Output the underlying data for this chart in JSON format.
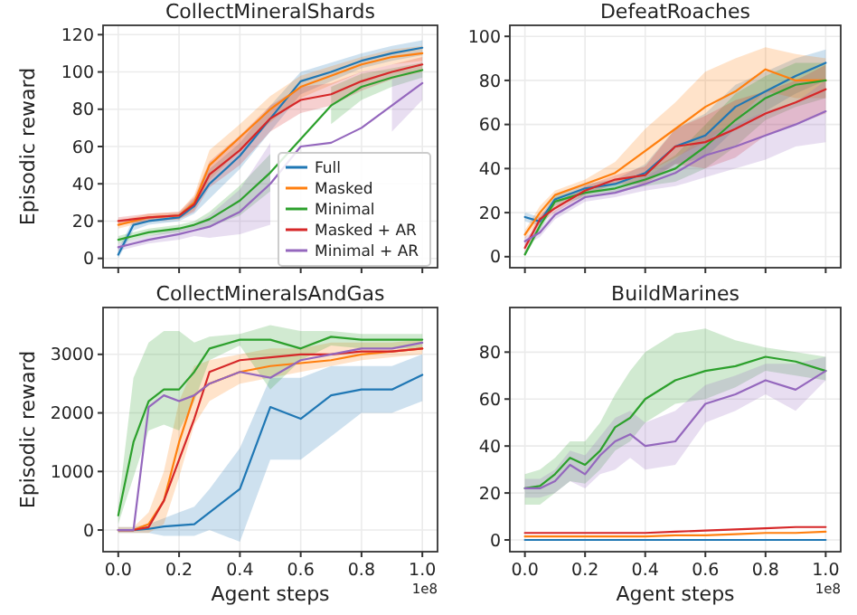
{
  "chart_data": [
    {
      "type": "line",
      "title": "CollectMineralShards",
      "ylabel": "Episodic reward",
      "xlim": [
        -0.05,
        1.05
      ],
      "ylim": [
        -5,
        125
      ],
      "yticks": [
        0,
        20,
        40,
        60,
        80,
        100,
        120
      ],
      "xticks": [
        0,
        0.2,
        0.4,
        0.6,
        0.8,
        1
      ],
      "tick_labels": "y",
      "grid": true,
      "legend": "bottom right",
      "x": [
        0,
        0.05,
        0.1,
        0.2,
        0.25,
        0.3,
        0.4,
        0.5,
        0.6,
        0.7,
        0.8,
        0.9,
        1.0
      ],
      "series": [
        {
          "name": "Full",
          "color": "#1f77b4",
          "values": [
            2,
            18,
            20,
            22,
            28,
            40,
            55,
            75,
            95,
            100,
            106,
            110,
            113
          ],
          "lower": [
            0,
            15,
            18,
            20,
            24,
            32,
            48,
            68,
            88,
            95,
            102,
            106,
            109
          ],
          "upper": [
            5,
            21,
            22,
            24,
            32,
            48,
            62,
            82,
            100,
            105,
            110,
            114,
            117
          ]
        },
        {
          "name": "Masked",
          "color": "#ff7f0e",
          "values": [
            18,
            20,
            22,
            23,
            30,
            50,
            65,
            80,
            92,
            98,
            104,
            108,
            110
          ],
          "lower": [
            16,
            18,
            20,
            21,
            26,
            42,
            58,
            73,
            86,
            93,
            100,
            104,
            106
          ],
          "upper": [
            20,
            22,
            24,
            25,
            34,
            58,
            72,
            87,
            98,
            103,
            108,
            112,
            114
          ]
        },
        {
          "name": "Minimal",
          "color": "#2ca02c",
          "values": [
            10,
            12,
            14,
            16,
            18,
            21,
            31,
            46,
            64,
            82,
            92,
            97,
            101
          ],
          "lower": [
            8,
            10,
            12,
            14,
            16,
            17,
            23,
            36,
            null,
            72,
            85,
            92,
            97
          ],
          "upper": [
            12,
            14,
            16,
            18,
            20,
            25,
            39,
            56,
            null,
            92,
            99,
            102,
            105
          ]
        },
        {
          "name": "Masked + AR",
          "color": "#d62728",
          "values": [
            20,
            21,
            22,
            23,
            29,
            45,
            58,
            75,
            85,
            88,
            95,
            100,
            104
          ],
          "lower": [
            18,
            19,
            20,
            21,
            25,
            38,
            50,
            68,
            78,
            82,
            90,
            96,
            100
          ],
          "upper": [
            22,
            23,
            24,
            25,
            33,
            52,
            66,
            82,
            92,
            94,
            100,
            104,
            108
          ]
        },
        {
          "name": "Minimal + AR",
          "color": "#9467bd",
          "values": [
            6,
            8,
            10,
            13,
            15,
            17,
            25,
            40,
            60,
            62,
            70,
            82,
            94
          ],
          "lower": [
            4,
            6,
            8,
            10,
            12,
            11,
            13,
            18,
            null,
            null,
            null,
            68,
            85
          ],
          "upper": [
            8,
            10,
            12,
            16,
            18,
            23,
            37,
            62,
            null,
            null,
            null,
            96,
            100
          ]
        }
      ]
    },
    {
      "type": "line",
      "title": "DefeatRoaches",
      "xlim": [
        -0.05,
        1.05
      ],
      "ylim": [
        -5,
        105
      ],
      "yticks": [
        0,
        20,
        40,
        60,
        80,
        100
      ],
      "xticks": [
        0,
        0.2,
        0.4,
        0.6,
        0.8,
        1
      ],
      "tick_labels": "y",
      "grid": true,
      "x": [
        0,
        0.05,
        0.1,
        0.2,
        0.3,
        0.4,
        0.5,
        0.6,
        0.7,
        0.8,
        0.9,
        1.0
      ],
      "series": [
        {
          "color": "#1f77b4",
          "values": [
            18,
            16,
            26,
            31,
            33,
            38,
            50,
            55,
            68,
            75,
            82,
            88
          ],
          "lower": [
            16,
            14,
            24,
            29,
            31,
            34,
            42,
            45,
            58,
            66,
            74,
            80
          ],
          "upper": [
            20,
            18,
            28,
            33,
            35,
            42,
            58,
            65,
            78,
            84,
            90,
            94
          ]
        },
        {
          "color": "#ff7f0e",
          "values": [
            10,
            20,
            28,
            33,
            38,
            48,
            58,
            68,
            75,
            85,
            80,
            80
          ],
          "lower": [
            8,
            17,
            26,
            31,
            33,
            38,
            45,
            52,
            62,
            75,
            72,
            72
          ],
          "upper": [
            12,
            23,
            30,
            35,
            43,
            58,
            70,
            84,
            90,
            95,
            92,
            90
          ]
        },
        {
          "color": "#2ca02c",
          "values": [
            1,
            14,
            25,
            29,
            31,
            35,
            40,
            50,
            62,
            72,
            78,
            80
          ],
          "lower": [
            0,
            12,
            23,
            27,
            29,
            32,
            34,
            40,
            50,
            62,
            68,
            72
          ],
          "upper": [
            2,
            16,
            27,
            31,
            33,
            38,
            46,
            60,
            74,
            82,
            88,
            88
          ]
        },
        {
          "color": "#d62728",
          "values": [
            4,
            17,
            22,
            30,
            35,
            37,
            50,
            52,
            58,
            65,
            70,
            76
          ],
          "lower": [
            2,
            15,
            20,
            28,
            33,
            33,
            42,
            40,
            45,
            55,
            60,
            65
          ],
          "upper": [
            6,
            19,
            24,
            32,
            37,
            41,
            58,
            64,
            71,
            75,
            80,
            87
          ]
        },
        {
          "color": "#9467bd",
          "values": [
            7,
            11,
            19,
            27,
            29,
            33,
            38,
            46,
            50,
            55,
            60,
            66
          ],
          "lower": [
            5,
            9,
            17,
            25,
            27,
            30,
            32,
            36,
            40,
            44,
            50,
            52
          ],
          "upper": [
            9,
            13,
            21,
            29,
            31,
            36,
            44,
            56,
            60,
            66,
            70,
            80
          ]
        }
      ]
    },
    {
      "type": "line",
      "title": "CollectMineralsAndGas",
      "xlabel": "Agent steps",
      "ylabel": "Episodic reward",
      "annotations": [
        "1e8"
      ],
      "xlim": [
        -0.05,
        1.05
      ],
      "ylim": [
        -370,
        3800
      ],
      "yticks": [
        0,
        1000,
        2000,
        3000
      ],
      "xticks": [
        {
          "value": 0,
          "label": "0.0"
        },
        {
          "value": 0.2,
          "label": "0.2"
        },
        {
          "value": 0.4,
          "label": "0.4"
        },
        {
          "value": 0.6,
          "label": "0.6"
        },
        {
          "value": 0.8,
          "label": "0.8"
        },
        {
          "value": 1,
          "label": "1.0"
        }
      ],
      "grid": true,
      "x": [
        0,
        0.05,
        0.1,
        0.15,
        0.2,
        0.25,
        0.3,
        0.4,
        0.5,
        0.6,
        0.7,
        0.8,
        0.9,
        1.0
      ],
      "series": [
        {
          "color": "#1f77b4",
          "values": [
            0,
            0,
            20,
            60,
            80,
            100,
            300,
            700,
            2100,
            1900,
            2300,
            2400,
            2400,
            2650
          ],
          "lower": [
            -50,
            -50,
            -50,
            -100,
            -100,
            -100,
            0,
            -200,
            1200,
            1200,
            1600,
            2000,
            2000,
            2200
          ],
          "upper": [
            50,
            50,
            100,
            200,
            300,
            400,
            700,
            1400,
            2600,
            2600,
            2800,
            2800,
            2800,
            3000
          ]
        },
        {
          "color": "#ff7f0e",
          "values": [
            0,
            0,
            100,
            500,
            1500,
            2300,
            2500,
            2700,
            2800,
            2850,
            2900,
            3000,
            3050,
            3100
          ],
          "lower": [
            -50,
            -50,
            -50,
            100,
            900,
            1800,
            2200,
            2500,
            2600,
            2700,
            2800,
            2900,
            2950,
            3000
          ],
          "upper": [
            50,
            50,
            300,
            1000,
            2200,
            2800,
            2900,
            3000,
            3100,
            3100,
            3200,
            3200,
            3200,
            3250
          ]
        },
        {
          "color": "#2ca02c",
          "values": [
            250,
            1500,
            2200,
            2400,
            2400,
            2700,
            3100,
            3250,
            3250,
            3100,
            3300,
            3250,
            3250,
            3250
          ],
          "lower": [
            100,
            900,
            1700,
            1800,
            1700,
            2200,
            2900,
            3150,
            2400,
            2900,
            3150,
            3100,
            3100,
            3100
          ],
          "upper": [
            400,
            2600,
            3200,
            3400,
            3400,
            3200,
            3300,
            3350,
            3500,
            3400,
            3400,
            3350,
            3350,
            3350
          ]
        },
        {
          "color": "#d62728",
          "values": [
            0,
            0,
            50,
            500,
            1200,
            1900,
            2700,
            2900,
            2950,
            3000,
            3000,
            3050,
            3050,
            3100
          ]
        },
        {
          "color": "#9467bd",
          "values": [
            0,
            0,
            2100,
            2300,
            2200,
            2300,
            2500,
            2700,
            2600,
            2900,
            3000,
            3100,
            3100,
            3200
          ]
        }
      ]
    },
    {
      "type": "line",
      "title": "BuildMarines",
      "xlabel": "Agent steps",
      "annotations": [
        "1e8"
      ],
      "xlim": [
        -0.05,
        1.05
      ],
      "ylim": [
        -5,
        99
      ],
      "yticks": [
        0,
        20,
        40,
        60,
        80
      ],
      "xticks": [
        {
          "value": 0,
          "label": "0.0"
        },
        {
          "value": 0.2,
          "label": "0.2"
        },
        {
          "value": 0.4,
          "label": "0.4"
        },
        {
          "value": 0.6,
          "label": "0.6"
        },
        {
          "value": 0.8,
          "label": "0.8"
        },
        {
          "value": 1,
          "label": "1.0"
        }
      ],
      "grid": true,
      "x": [
        0,
        0.05,
        0.1,
        0.15,
        0.2,
        0.25,
        0.3,
        0.35,
        0.4,
        0.5,
        0.6,
        0.7,
        0.8,
        0.9,
        1.0
      ],
      "series": [
        {
          "color": "#1f77b4",
          "values": [
            0,
            0,
            0,
            0,
            0,
            0,
            0,
            0,
            0,
            0,
            0,
            0,
            0,
            0,
            0
          ]
        },
        {
          "color": "#ff7f0e",
          "values": [
            1.5,
            1.5,
            1.5,
            1.5,
            1.5,
            1.5,
            1.5,
            1.5,
            1.5,
            2,
            2,
            2.5,
            3,
            3,
            3.5
          ]
        },
        {
          "color": "#2ca02c",
          "values": [
            22,
            23,
            28,
            35,
            32,
            38,
            48,
            52,
            60,
            68,
            72,
            74,
            78,
            76,
            72
          ],
          "lower": [
            15,
            15,
            20,
            25,
            24,
            30,
            38,
            42,
            50,
            58,
            60,
            65,
            72,
            70,
            68
          ],
          "upper": [
            28,
            30,
            35,
            42,
            42,
            50,
            62,
            72,
            80,
            88,
            90,
            85,
            82,
            80,
            78
          ]
        },
        {
          "color": "#d62728",
          "values": [
            3,
            3,
            3,
            3,
            3,
            3,
            3,
            3,
            3,
            3.5,
            4,
            4.5,
            5,
            5.5,
            5.5
          ]
        },
        {
          "color": "#9467bd",
          "values": [
            22,
            22,
            25,
            32,
            28,
            36,
            42,
            45,
            40,
            42,
            58,
            62,
            68,
            64,
            72
          ],
          "lower": [
            18,
            18,
            20,
            25,
            22,
            28,
            30,
            35,
            30,
            32,
            50,
            55,
            62,
            55,
            68
          ],
          "upper": [
            26,
            26,
            30,
            38,
            36,
            44,
            52,
            55,
            50,
            55,
            66,
            70,
            75,
            75,
            78
          ]
        }
      ]
    }
  ]
}
